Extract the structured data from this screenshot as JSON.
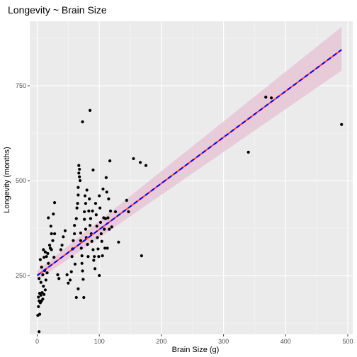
{
  "chart_data": {
    "type": "scatter",
    "title": "Longevity ~ Brain Size",
    "xlabel": "Brain Size (g)",
    "ylabel": "Longevity (months)",
    "xlim": [
      -12,
      508
    ],
    "ylim": [
      95,
      920
    ],
    "x_ticks": [
      0,
      100,
      200,
      300,
      400,
      500
    ],
    "y_ticks": [
      250,
      500,
      750
    ],
    "grid": true,
    "legend": "none",
    "colors": {
      "panel": "#ebebeb",
      "grid_major": "#ffffff",
      "grid_minor": "#f5f5f5",
      "points": "#000000",
      "ribbon": "#e6c6d6",
      "fit_red": "#ff3b3b",
      "fit_blue": "#0000ff"
    },
    "fit": {
      "x": [
        0,
        490
      ],
      "y": [
        250,
        845
      ],
      "ci_lower": [
        237,
        790
      ],
      "ci_upper": [
        263,
        905
      ]
    },
    "points": [
      {
        "x": 3,
        "y": 102
      },
      {
        "x": 1,
        "y": 145
      },
      {
        "x": 4,
        "y": 148
      },
      {
        "x": 2,
        "y": 168
      },
      {
        "x": 5,
        "y": 178
      },
      {
        "x": 3,
        "y": 183
      },
      {
        "x": 7,
        "y": 183
      },
      {
        "x": 9,
        "y": 188
      },
      {
        "x": 2,
        "y": 193
      },
      {
        "x": 6,
        "y": 198
      },
      {
        "x": 4,
        "y": 203
      },
      {
        "x": 8,
        "y": 205
      },
      {
        "x": 11,
        "y": 200
      },
      {
        "x": 13,
        "y": 212
      },
      {
        "x": 10,
        "y": 222
      },
      {
        "x": 6,
        "y": 232
      },
      {
        "x": 14,
        "y": 238
      },
      {
        "x": 3,
        "y": 242
      },
      {
        "x": 9,
        "y": 252
      },
      {
        "x": 16,
        "y": 257
      },
      {
        "x": 12,
        "y": 263
      },
      {
        "x": 7,
        "y": 272
      },
      {
        "x": 18,
        "y": 282
      },
      {
        "x": 5,
        "y": 292
      },
      {
        "x": 11,
        "y": 298
      },
      {
        "x": 15,
        "y": 300
      },
      {
        "x": 10,
        "y": 318
      },
      {
        "x": 21,
        "y": 322
      },
      {
        "x": 17,
        "y": 308
      },
      {
        "x": 23,
        "y": 318
      },
      {
        "x": 13,
        "y": 312
      },
      {
        "x": 20,
        "y": 330
      },
      {
        "x": 25,
        "y": 342
      },
      {
        "x": 27,
        "y": 298
      },
      {
        "x": 23,
        "y": 360
      },
      {
        "x": 28,
        "y": 360
      },
      {
        "x": 22,
        "y": 380
      },
      {
        "x": 18,
        "y": 402
      },
      {
        "x": 26,
        "y": 412
      },
      {
        "x": 28,
        "y": 442
      },
      {
        "x": 33,
        "y": 252
      },
      {
        "x": 35,
        "y": 242
      },
      {
        "x": 38,
        "y": 318
      },
      {
        "x": 40,
        "y": 330
      },
      {
        "x": 42,
        "y": 352
      },
      {
        "x": 45,
        "y": 368
      },
      {
        "x": 48,
        "y": 252
      },
      {
        "x": 50,
        "y": 230
      },
      {
        "x": 53,
        "y": 238
      },
      {
        "x": 55,
        "y": 260
      },
      {
        "x": 56,
        "y": 300
      },
      {
        "x": 57,
        "y": 320
      },
      {
        "x": 58,
        "y": 342
      },
      {
        "x": 60,
        "y": 360
      },
      {
        "x": 60,
        "y": 382
      },
      {
        "x": 61,
        "y": 280
      },
      {
        "x": 63,
        "y": 400
      },
      {
        "x": 64,
        "y": 428
      },
      {
        "x": 65,
        "y": 440
      },
      {
        "x": 66,
        "y": 462
      },
      {
        "x": 66,
        "y": 482
      },
      {
        "x": 67,
        "y": 520
      },
      {
        "x": 67,
        "y": 540
      },
      {
        "x": 68,
        "y": 530
      },
      {
        "x": 68,
        "y": 510
      },
      {
        "x": 69,
        "y": 500
      },
      {
        "x": 70,
        "y": 362
      },
      {
        "x": 70,
        "y": 342
      },
      {
        "x": 71,
        "y": 322
      },
      {
        "x": 72,
        "y": 302
      },
      {
        "x": 72,
        "y": 282
      },
      {
        "x": 73,
        "y": 262
      },
      {
        "x": 74,
        "y": 240
      },
      {
        "x": 75,
        "y": 192
      },
      {
        "x": 63,
        "y": 192
      },
      {
        "x": 66,
        "y": 215
      },
      {
        "x": 76,
        "y": 418
      },
      {
        "x": 76,
        "y": 398
      },
      {
        "x": 77,
        "y": 460
      },
      {
        "x": 78,
        "y": 440
      },
      {
        "x": 78,
        "y": 372
      },
      {
        "x": 79,
        "y": 350
      },
      {
        "x": 80,
        "y": 475
      },
      {
        "x": 81,
        "y": 332
      },
      {
        "x": 82,
        "y": 300
      },
      {
        "x": 83,
        "y": 420
      },
      {
        "x": 84,
        "y": 452
      },
      {
        "x": 85,
        "y": 382
      },
      {
        "x": 86,
        "y": 400
      },
      {
        "x": 87,
        "y": 360
      },
      {
        "x": 88,
        "y": 340
      },
      {
        "x": 89,
        "y": 420
      },
      {
        "x": 90,
        "y": 528
      },
      {
        "x": 90,
        "y": 318
      },
      {
        "x": 91,
        "y": 290
      },
      {
        "x": 92,
        "y": 300
      },
      {
        "x": 93,
        "y": 268
      },
      {
        "x": 94,
        "y": 440
      },
      {
        "x": 95,
        "y": 410
      },
      {
        "x": 96,
        "y": 380
      },
      {
        "x": 97,
        "y": 350
      },
      {
        "x": 98,
        "y": 320
      },
      {
        "x": 99,
        "y": 300
      },
      {
        "x": 100,
        "y": 460
      },
      {
        "x": 100,
        "y": 250
      },
      {
        "x": 101,
        "y": 428
      },
      {
        "x": 102,
        "y": 390
      },
      {
        "x": 103,
        "y": 360
      },
      {
        "x": 104,
        "y": 340
      },
      {
        "x": 105,
        "y": 302
      },
      {
        "x": 106,
        "y": 478
      },
      {
        "x": 107,
        "y": 402
      },
      {
        "x": 108,
        "y": 372
      },
      {
        "x": 109,
        "y": 322
      },
      {
        "x": 110,
        "y": 400
      },
      {
        "x": 111,
        "y": 508
      },
      {
        "x": 112,
        "y": 470
      },
      {
        "x": 113,
        "y": 322
      },
      {
        "x": 114,
        "y": 402
      },
      {
        "x": 115,
        "y": 452
      },
      {
        "x": 116,
        "y": 372
      },
      {
        "x": 117,
        "y": 552
      },
      {
        "x": 118,
        "y": 420
      },
      {
        "x": 120,
        "y": 378
      },
      {
        "x": 126,
        "y": 418
      },
      {
        "x": 131,
        "y": 338
      },
      {
        "x": 144,
        "y": 448
      },
      {
        "x": 147,
        "y": 418
      },
      {
        "x": 155,
        "y": 558
      },
      {
        "x": 166,
        "y": 548
      },
      {
        "x": 168,
        "y": 302
      },
      {
        "x": 175,
        "y": 540
      },
      {
        "x": 73,
        "y": 655
      },
      {
        "x": 85,
        "y": 685
      },
      {
        "x": 340,
        "y": 575
      },
      {
        "x": 490,
        "y": 648
      },
      {
        "x": 368,
        "y": 720
      },
      {
        "x": 377,
        "y": 718
      }
    ]
  }
}
